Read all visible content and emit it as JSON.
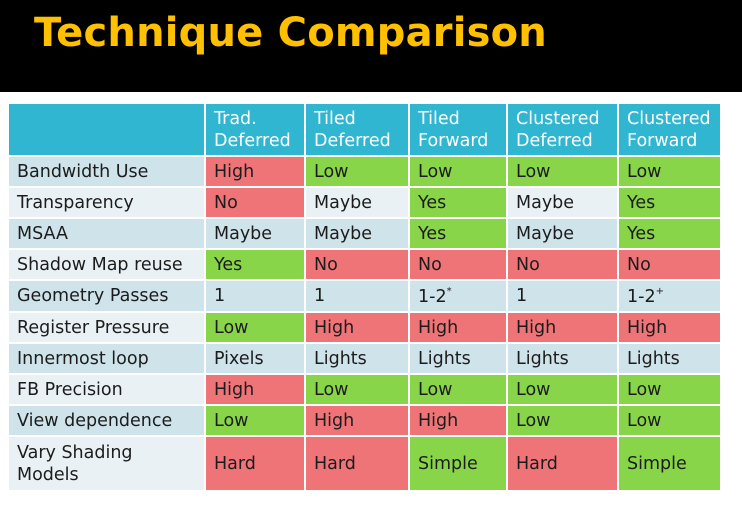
{
  "slide": {
    "title": "Technique Comparison",
    "colors": {
      "title": "#FFC000",
      "band": "#000000",
      "header": "#31B6D1",
      "good": "#88D54A",
      "bad": "#EE7478",
      "row_dark": "#CFE3EB",
      "row_light": "#E9F1F4"
    }
  },
  "table": {
    "columns": [
      {
        "line1": "Trad.",
        "line2": "Deferred"
      },
      {
        "line1": "Tiled",
        "line2": "Deferred"
      },
      {
        "line1": "Tiled",
        "line2": "Forward"
      },
      {
        "line1": "Clustered",
        "line2": "Deferred"
      },
      {
        "line1": "Clustered",
        "line2": "Forward"
      }
    ],
    "rows": [
      {
        "label": "Bandwidth Use",
        "cells": [
          {
            "text": "High",
            "rating": "bad"
          },
          {
            "text": "Low",
            "rating": "good"
          },
          {
            "text": "Low",
            "rating": "good"
          },
          {
            "text": "Low",
            "rating": "good"
          },
          {
            "text": "Low",
            "rating": "good"
          }
        ]
      },
      {
        "label": "Transparency",
        "cells": [
          {
            "text": "No",
            "rating": "bad"
          },
          {
            "text": "Maybe",
            "rating": "neutral"
          },
          {
            "text": "Yes",
            "rating": "good"
          },
          {
            "text": "Maybe",
            "rating": "neutral"
          },
          {
            "text": "Yes",
            "rating": "good"
          }
        ]
      },
      {
        "label": "MSAA",
        "cells": [
          {
            "text": "Maybe",
            "rating": "neutral"
          },
          {
            "text": "Maybe",
            "rating": "neutral"
          },
          {
            "text": "Yes",
            "rating": "good"
          },
          {
            "text": "Maybe",
            "rating": "neutral"
          },
          {
            "text": "Yes",
            "rating": "good"
          }
        ]
      },
      {
        "label": "Shadow Map reuse",
        "cells": [
          {
            "text": "Yes",
            "rating": "good"
          },
          {
            "text": "No",
            "rating": "bad"
          },
          {
            "text": "No",
            "rating": "bad"
          },
          {
            "text": "No",
            "rating": "bad"
          },
          {
            "text": "No",
            "rating": "bad"
          }
        ]
      },
      {
        "label": "Geometry Passes",
        "cells": [
          {
            "text": "1",
            "rating": "neutral"
          },
          {
            "text": "1",
            "rating": "neutral"
          },
          {
            "text": "1-2",
            "sup": "*",
            "rating": "neutral"
          },
          {
            "text": "1",
            "rating": "neutral"
          },
          {
            "text": "1-2",
            "sup": "+",
            "rating": "neutral"
          }
        ]
      },
      {
        "label": "Register Pressure",
        "cells": [
          {
            "text": "Low",
            "rating": "good"
          },
          {
            "text": "High",
            "rating": "bad"
          },
          {
            "text": "High",
            "rating": "bad"
          },
          {
            "text": "High",
            "rating": "bad"
          },
          {
            "text": "High",
            "rating": "bad"
          }
        ]
      },
      {
        "label": "Innermost loop",
        "cells": [
          {
            "text": "Pixels",
            "rating": "neutral"
          },
          {
            "text": "Lights",
            "rating": "neutral"
          },
          {
            "text": "Lights",
            "rating": "neutral"
          },
          {
            "text": "Lights",
            "rating": "neutral"
          },
          {
            "text": "Lights",
            "rating": "neutral"
          }
        ]
      },
      {
        "label": "FB Precision",
        "cells": [
          {
            "text": "High",
            "rating": "bad"
          },
          {
            "text": "Low",
            "rating": "good"
          },
          {
            "text": "Low",
            "rating": "good"
          },
          {
            "text": "Low",
            "rating": "good"
          },
          {
            "text": "Low",
            "rating": "good"
          }
        ]
      },
      {
        "label": "View dependence",
        "cells": [
          {
            "text": "Low",
            "rating": "good"
          },
          {
            "text": "High",
            "rating": "bad"
          },
          {
            "text": "High",
            "rating": "bad"
          },
          {
            "text": "Low",
            "rating": "good"
          },
          {
            "text": "Low",
            "rating": "good"
          }
        ]
      },
      {
        "label": "Vary Shading Models",
        "label_lines": [
          "Vary Shading",
          "Models"
        ],
        "cells": [
          {
            "text": "Hard",
            "rating": "bad"
          },
          {
            "text": "Hard",
            "rating": "bad"
          },
          {
            "text": "Simple",
            "rating": "good"
          },
          {
            "text": "Hard",
            "rating": "bad"
          },
          {
            "text": "Simple",
            "rating": "good"
          }
        ]
      }
    ]
  }
}
